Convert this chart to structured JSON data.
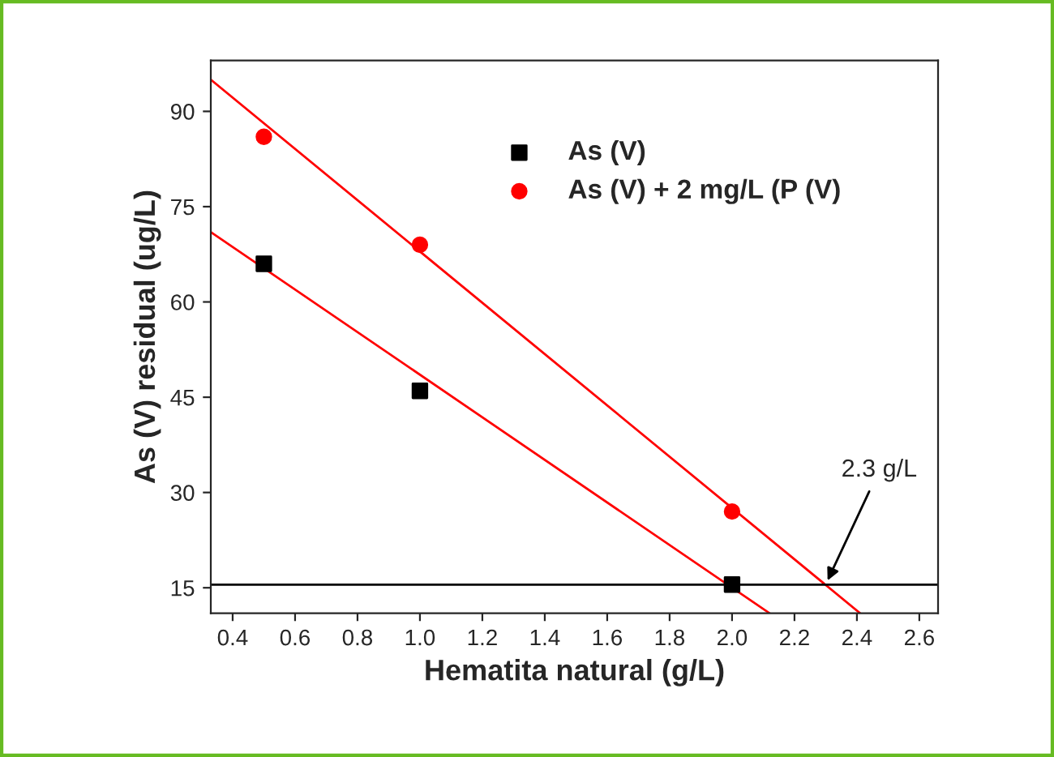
{
  "chart_data": {
    "type": "scatter",
    "xlabel": "Hematita natural (g/L)",
    "ylabel": "As (V) residual (ug/L)",
    "x": [
      0.5,
      1.0,
      2.0
    ],
    "series": [
      {
        "name": "As (V)",
        "color": "#000000",
        "values": [
          66,
          46,
          15.5
        ],
        "marker": "square"
      },
      {
        "name": "As (V) + 2 mg/L (P (V)",
        "color": "#ff0000",
        "values": [
          86,
          69,
          27
        ],
        "marker": "circle"
      },
      {
        "type": "line",
        "color": "#ff0000",
        "x": [
          0.33,
          2.41
        ],
        "values": [
          95,
          11
        ]
      },
      {
        "type": "line",
        "color": "#ff0000",
        "x": [
          0.33,
          2.12
        ],
        "values": [
          71,
          11
        ]
      }
    ],
    "ref_lines": [
      {
        "axis": "y",
        "value": 15.5,
        "color": "#000000"
      }
    ],
    "annotations": [
      {
        "text": "2.3 g/L",
        "x": 2.3,
        "y": 15.5
      }
    ],
    "xlim": [
      0.33,
      2.66
    ],
    "xticks": [
      0.4,
      0.6,
      0.8,
      {
        "value": 1,
        "label": "1.0"
      },
      1.2,
      1.4,
      1.6,
      1.8,
      {
        "value": 2,
        "label": "2.0"
      },
      2.2,
      2.4,
      2.6
    ],
    "ylim": [
      11,
      98
    ],
    "yticks": [
      15,
      30,
      45,
      60,
      75,
      90
    ],
    "legend": "top right",
    "grid": false
  }
}
